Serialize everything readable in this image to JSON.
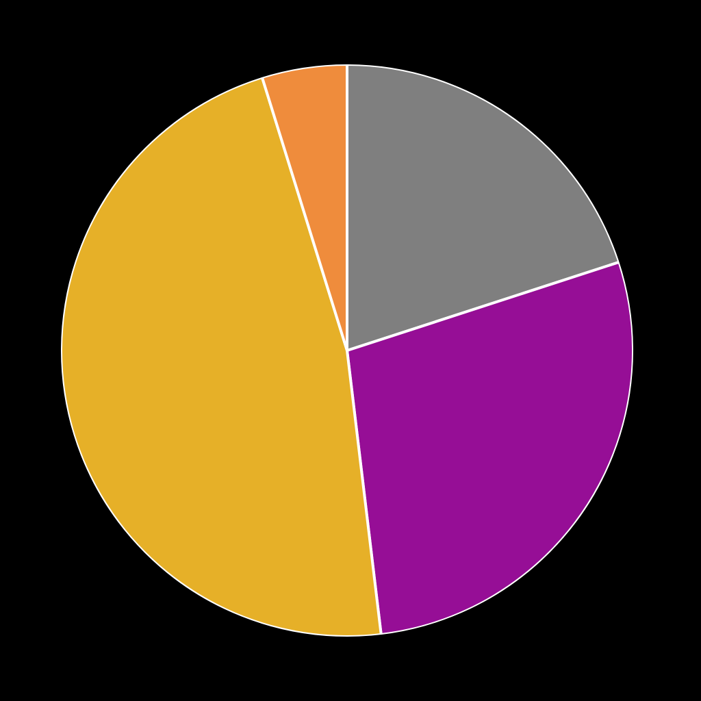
{
  "chart_data": {
    "type": "pie",
    "start": "12-o-clock",
    "direction": "clockwise",
    "values": [
      20.0,
      28.1,
      47.1,
      4.8
    ],
    "colors": [
      "#7f7f7f",
      "#960e96",
      "#e6b028",
      "#ef8c3c"
    ],
    "separator_color": "#ffffff",
    "background": "#000000",
    "legend": "none"
  }
}
